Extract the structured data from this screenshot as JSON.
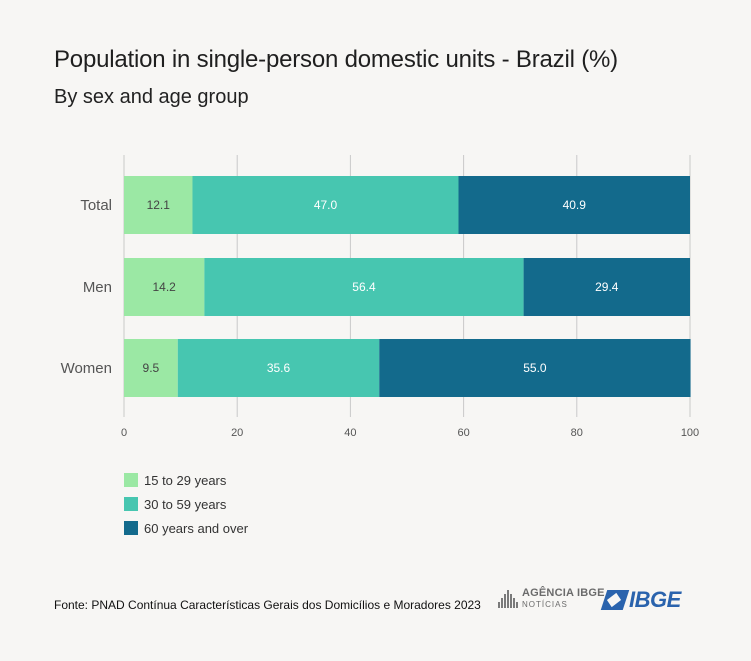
{
  "header": {
    "title": "Population in single-person domestic units - Brazil (%)",
    "subtitle": "By sex and age group"
  },
  "colors": {
    "series_1": "#9be8a4",
    "series_2": "#47c6b0",
    "series_3": "#136a8c",
    "grid": "#c9c9c9",
    "axis_text": "#555555"
  },
  "chart_data": {
    "type": "bar",
    "orientation": "horizontal",
    "stacked": true,
    "categories": [
      "Total",
      "Men",
      "Women"
    ],
    "series": [
      {
        "name": "15 to 29 years",
        "values": [
          12.1,
          14.2,
          9.5
        ]
      },
      {
        "name": "30 to 59 years",
        "values": [
          47.0,
          56.4,
          35.6
        ]
      },
      {
        "name": "60 years and over",
        "values": [
          40.9,
          29.4,
          55.0
        ]
      }
    ],
    "xlim": [
      0,
      100
    ],
    "xticks": [
      0,
      20,
      40,
      60,
      80,
      100
    ],
    "grid": "vertical",
    "legend_position": "bottom-left",
    "data_labels": true
  },
  "footer": {
    "source": "Fonte: PNAD Contínua Características Gerais dos Domicílios e Moradores 2023",
    "logo_agencia_line1": "AGÊNCIA IBGE",
    "logo_agencia_line2": "NOTÍCIAS",
    "logo_ibge": "IBGE"
  }
}
